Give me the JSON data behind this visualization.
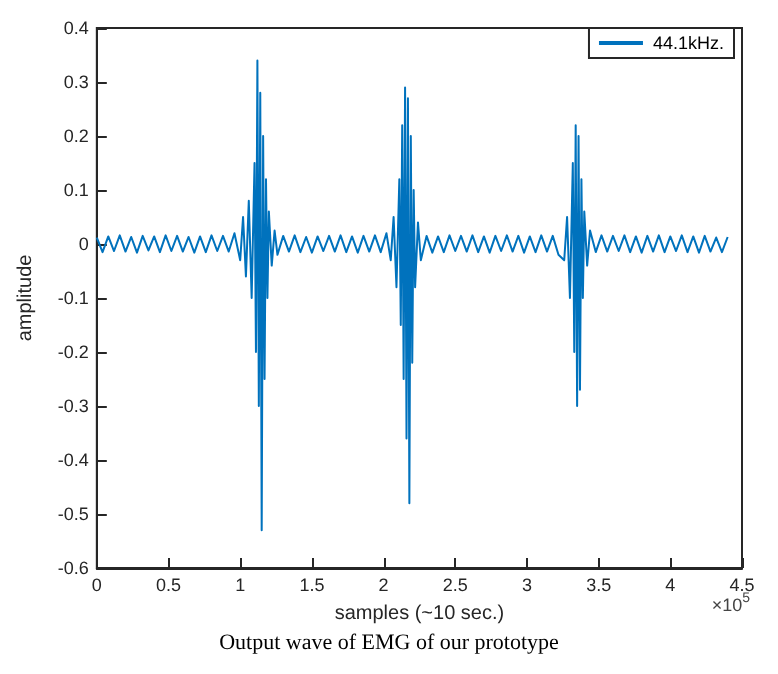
{
  "chart_data": {
    "type": "line",
    "xlabel": "samples (~10 sec.)",
    "ylabel": "amplitude",
    "annotations": [
      "Output wave of EMG of our prototype",
      "×10$^{5}$"
    ],
    "xlim": [
      0,
      4.5
    ],
    "xticks": [
      0,
      0.5,
      1,
      1.5,
      2,
      2.5,
      3,
      3.5,
      4,
      4.5
    ],
    "ylim": [
      -0.6,
      0.4
    ],
    "yticks": [
      -0.6,
      -0.5,
      -0.4,
      -0.3,
      -0.2,
      -0.1,
      0,
      0.1,
      0.2,
      0.3,
      0.4
    ],
    "grid": false,
    "legend": "top right",
    "marker": "none",
    "series": [
      {
        "name": "44.1kHz.",
        "color": "#0072bd",
        "x": [
          0,
          0.04,
          0.08,
          0.12,
          0.16,
          0.2,
          0.24,
          0.28,
          0.32,
          0.36,
          0.4,
          0.44,
          0.48,
          0.52,
          0.56,
          0.6,
          0.64,
          0.68,
          0.72,
          0.76,
          0.8,
          0.84,
          0.88,
          0.92,
          0.96,
          1,
          1.02,
          1.04,
          1.06,
          1.08,
          1.1,
          1.11,
          1.12,
          1.13,
          1.14,
          1.15,
          1.16,
          1.17,
          1.18,
          1.19,
          1.2,
          1.22,
          1.24,
          1.26,
          1.3,
          1.34,
          1.38,
          1.42,
          1.46,
          1.5,
          1.54,
          1.58,
          1.62,
          1.66,
          1.7,
          1.74,
          1.78,
          1.82,
          1.86,
          1.9,
          1.94,
          1.98,
          2.02,
          2.05,
          2.07,
          2.09,
          2.11,
          2.12,
          2.13,
          2.14,
          2.15,
          2.16,
          2.17,
          2.18,
          2.19,
          2.2,
          2.21,
          2.22,
          2.24,
          2.26,
          2.3,
          2.34,
          2.38,
          2.42,
          2.46,
          2.5,
          2.54,
          2.58,
          2.62,
          2.66,
          2.7,
          2.74,
          2.78,
          2.82,
          2.86,
          2.9,
          2.94,
          2.98,
          3.02,
          3.06,
          3.1,
          3.14,
          3.18,
          3.22,
          3.26,
          3.28,
          3.3,
          3.32,
          3.33,
          3.34,
          3.35,
          3.36,
          3.37,
          3.38,
          3.39,
          3.4,
          3.42,
          3.44,
          3.48,
          3.52,
          3.56,
          3.6,
          3.64,
          3.68,
          3.72,
          3.76,
          3.8,
          3.84,
          3.88,
          3.92,
          3.96,
          4,
          4.04,
          4.08,
          4.12,
          4.16,
          4.2,
          4.24,
          4.28,
          4.32,
          4.36,
          4.4
        ],
        "values": [
          0.012,
          -0.015,
          0.014,
          -0.013,
          0.016,
          -0.014,
          0.013,
          -0.016,
          0.015,
          -0.012,
          0.014,
          -0.015,
          0.016,
          -0.013,
          0.015,
          -0.014,
          0.013,
          -0.016,
          0.014,
          -0.015,
          0.016,
          -0.013,
          0.015,
          -0.014,
          0.02,
          -0.03,
          0.05,
          -0.06,
          0.08,
          -0.1,
          0.15,
          -0.2,
          0.34,
          -0.3,
          0.28,
          -0.53,
          0.2,
          -0.25,
          0.12,
          -0.1,
          0.06,
          -0.04,
          0.025,
          -0.02,
          0.015,
          -0.014,
          0.016,
          -0.015,
          0.013,
          -0.016,
          0.014,
          -0.013,
          0.015,
          -0.014,
          0.016,
          -0.015,
          0.014,
          -0.016,
          0.015,
          -0.014,
          0.016,
          -0.015,
          0.02,
          -0.03,
          0.05,
          -0.08,
          0.12,
          -0.15,
          0.22,
          -0.25,
          0.29,
          -0.36,
          0.27,
          -0.48,
          0.2,
          -0.22,
          0.1,
          -0.08,
          0.04,
          -0.03,
          0.015,
          -0.016,
          0.014,
          -0.015,
          0.016,
          -0.013,
          0.015,
          -0.014,
          0.016,
          -0.015,
          0.014,
          -0.016,
          0.015,
          -0.013,
          0.016,
          -0.014,
          0.015,
          -0.016,
          0.014,
          -0.015,
          0.016,
          -0.014,
          0.015,
          -0.02,
          -0.03,
          0.05,
          -0.1,
          0.15,
          -0.2,
          0.22,
          -0.3,
          0.2,
          -0.27,
          0.12,
          -0.1,
          0.06,
          -0.04,
          0.025,
          -0.015,
          0.016,
          -0.014,
          0.015,
          -0.013,
          0.016,
          -0.015,
          0.014,
          -0.016,
          0.015,
          -0.014,
          0.016,
          -0.015,
          0.014,
          -0.013,
          0.016,
          -0.015,
          0.014,
          -0.016,
          0.015,
          -0.014,
          0.012,
          -0.015,
          0.013
        ]
      }
    ]
  }
}
